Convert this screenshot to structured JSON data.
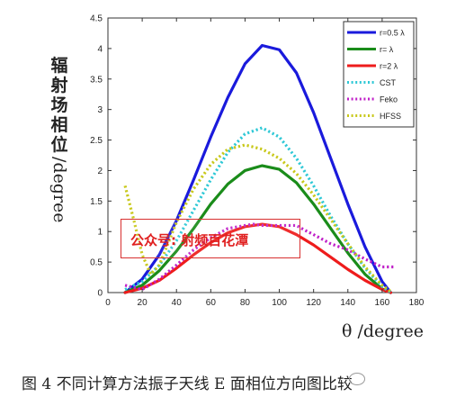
{
  "chart_data": {
    "type": "line",
    "ylabel": "辐射场相位/degree",
    "ylabel_cjk": [
      "辐",
      "射",
      "场",
      "相",
      "位"
    ],
    "ylabel_latin": "/degree",
    "xlabel": "θ /degree",
    "xlim": [
      0,
      180
    ],
    "ylim": [
      0,
      4.5
    ],
    "xticks": [
      "0",
      "20",
      "40",
      "60",
      "80",
      "100",
      "120",
      "140",
      "160",
      "180"
    ],
    "yticks": [
      "0",
      "0.5",
      "1",
      "1.5",
      "2",
      "2.5",
      "3",
      "3.5",
      "4",
      "4.5"
    ],
    "grid": false,
    "legend_position": "top-right",
    "series": [
      {
        "name": "r=0.5 λ",
        "color": "#1a1adc",
        "style": "solid",
        "x": [
          10,
          20,
          30,
          40,
          50,
          60,
          70,
          80,
          90,
          100,
          110,
          120,
          130,
          140,
          150,
          160,
          165
        ],
        "y": [
          0.0,
          0.22,
          0.62,
          1.18,
          1.85,
          2.55,
          3.2,
          3.75,
          4.05,
          3.98,
          3.6,
          2.95,
          2.2,
          1.45,
          0.75,
          0.18,
          0.0
        ]
      },
      {
        "name": "r= λ",
        "color": "#1a8c1a",
        "style": "solid",
        "x": [
          10,
          20,
          30,
          40,
          50,
          60,
          70,
          80,
          90,
          100,
          110,
          120,
          130,
          140,
          150,
          160,
          165
        ],
        "y": [
          0.0,
          0.12,
          0.36,
          0.68,
          1.05,
          1.45,
          1.78,
          2.0,
          2.08,
          2.02,
          1.8,
          1.45,
          1.05,
          0.65,
          0.3,
          0.06,
          0.0
        ]
      },
      {
        "name": "r=2 λ",
        "color": "#ee1c1c",
        "style": "solid",
        "x": [
          10,
          20,
          30,
          40,
          50,
          60,
          70,
          80,
          90,
          100,
          110,
          120,
          130,
          140,
          150,
          160,
          165
        ],
        "y": [
          0.0,
          0.07,
          0.2,
          0.4,
          0.62,
          0.82,
          0.98,
          1.08,
          1.12,
          1.08,
          0.95,
          0.78,
          0.58,
          0.38,
          0.2,
          0.05,
          0.0
        ]
      },
      {
        "name": "CST",
        "color": "#2ec8d6",
        "style": "dotted",
        "x": [
          10,
          20,
          30,
          40,
          50,
          60,
          70,
          80,
          90,
          100,
          110,
          120,
          130,
          140,
          150,
          160,
          165
        ],
        "y": [
          0.05,
          0.18,
          0.45,
          0.85,
          1.35,
          1.85,
          2.3,
          2.6,
          2.7,
          2.55,
          2.2,
          1.75,
          1.25,
          0.8,
          0.4,
          0.1,
          0.0
        ]
      },
      {
        "name": "Feko",
        "color": "#c020c8",
        "style": "dotted",
        "x": [
          10,
          20,
          30,
          40,
          50,
          60,
          70,
          80,
          85,
          90,
          100,
          110,
          115,
          120,
          130,
          140,
          150,
          160,
          167
        ],
        "y": [
          0.12,
          0.05,
          0.22,
          0.45,
          0.7,
          0.9,
          1.05,
          1.1,
          1.12,
          1.1,
          1.1,
          1.1,
          1.02,
          0.95,
          0.8,
          0.7,
          0.55,
          0.42,
          0.42
        ]
      },
      {
        "name": "HFSS",
        "color": "#c8c81a",
        "style": "dotted",
        "x": [
          10,
          15,
          20,
          25,
          30,
          35,
          40,
          50,
          60,
          70,
          80,
          90,
          100,
          110,
          120,
          130,
          140,
          150,
          160,
          165
        ],
        "y": [
          1.75,
          1.2,
          0.62,
          0.3,
          0.45,
          0.8,
          1.15,
          1.7,
          2.1,
          2.35,
          2.42,
          2.35,
          2.2,
          1.95,
          1.6,
          1.2,
          0.8,
          0.42,
          0.12,
          0.02
        ]
      }
    ]
  },
  "watermark": {
    "text": "公众号: 射频百花潭"
  },
  "caption": {
    "text": "图 4    不同计算方法振子天线 E 面相位方向图比较"
  }
}
